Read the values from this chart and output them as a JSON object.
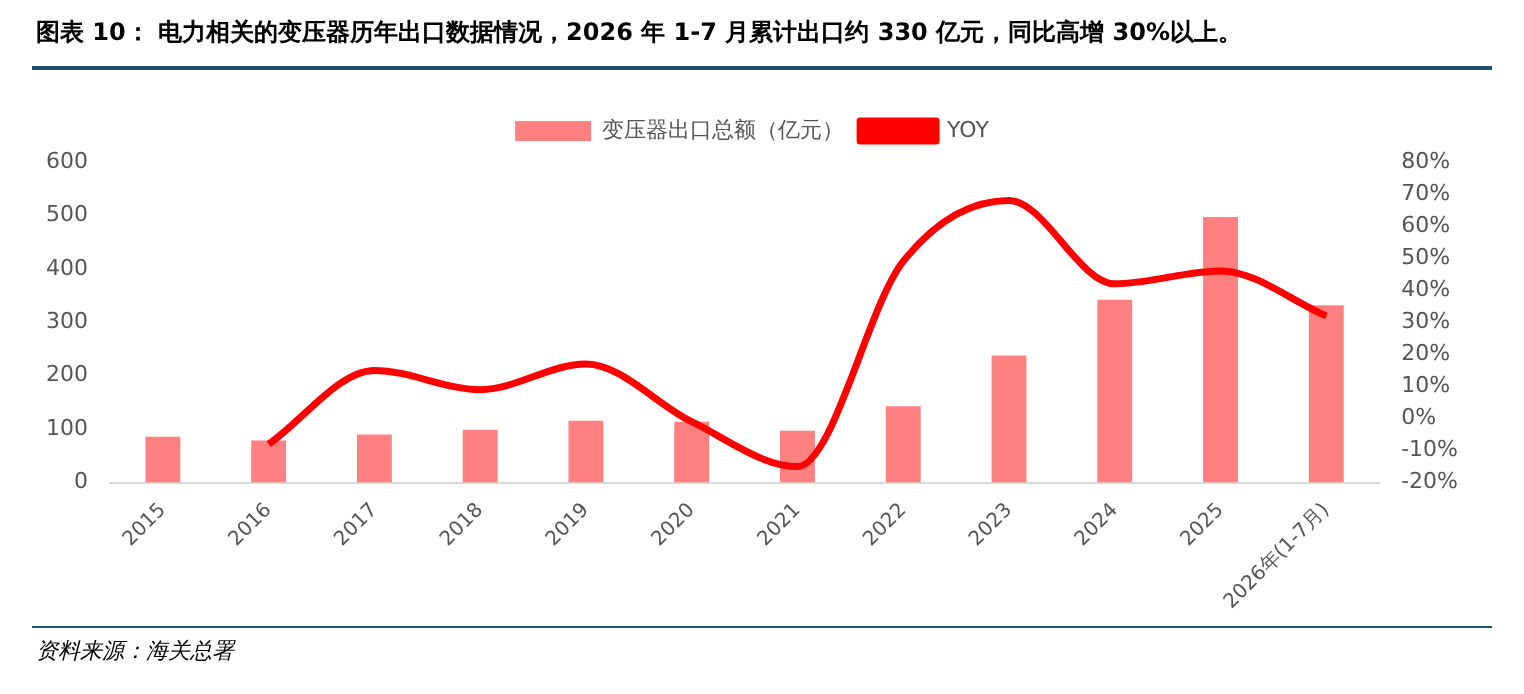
{
  "chart_data": {
    "type": "bar",
    "title": "图表 10： 电力相关的变压器历年出口数据情况，2026 年 1-7 月累计出口约 330 亿元，同比高增 30%以上。",
    "categories": [
      "2015",
      "2016",
      "2017",
      "2018",
      "2019",
      "2020",
      "2021",
      "2022",
      "2023",
      "2024",
      "2025",
      "2026年(1-7月)"
    ],
    "series": [
      {
        "name": "变压器出口总额（亿元）",
        "color": "#ff8080",
        "values": [
          86,
          79,
          90,
          99,
          116,
          114,
          97,
          143,
          238,
          342,
          497,
          332
        ]
      },
      {
        "name": "YOY",
        "type": "line",
        "axis": "y2",
        "color": "#ff0000",
        "values": [
          null,
          -8,
          15,
          9,
          17,
          -1,
          -15,
          49,
          68,
          42,
          46,
          32
        ]
      }
    ],
    "ylim": [
      0,
      600
    ],
    "yticks": [
      0,
      100,
      200,
      300,
      400,
      500,
      600
    ],
    "y2lim": [
      -20,
      80
    ],
    "y2ticks": [
      {
        "value": -20,
        "label": "-20%"
      },
      {
        "value": -10,
        "label": "-10%"
      },
      {
        "value": 0,
        "label": "0%"
      },
      {
        "value": 10,
        "label": "10%"
      },
      {
        "value": 20,
        "label": "20%"
      },
      {
        "value": 30,
        "label": "30%"
      },
      {
        "value": 40,
        "label": "40%"
      },
      {
        "value": 50,
        "label": "50%"
      },
      {
        "value": 60,
        "label": "60%"
      },
      {
        "value": 70,
        "label": "70%"
      },
      {
        "value": 80,
        "label": "80%"
      }
    ],
    "grid": false,
    "legend": "top",
    "marker": "none",
    "line_style": "solid",
    "annotations": [
      "资料来源：海关总署"
    ]
  }
}
